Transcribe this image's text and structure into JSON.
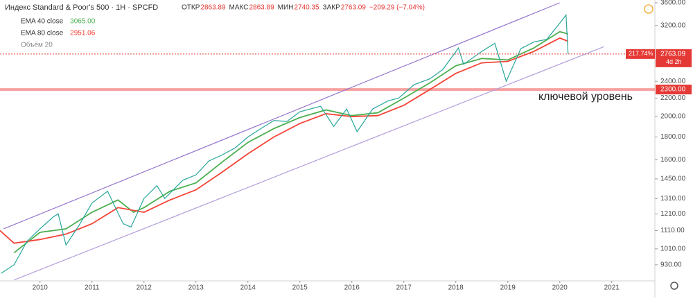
{
  "chart_data": {
    "type": "line",
    "title": "Индекс Standard & Poor's 500 · 1H · SPCFD",
    "ohlc": [
      {
        "label": "ОТКР",
        "value": 2863.89
      },
      {
        "label": "МАКС",
        "value": 2863.89
      },
      {
        "label": "МИН",
        "value": 2740.35
      },
      {
        "label": "ЗАКР",
        "value": 2763.09
      }
    ],
    "change": "−209.29 (−7.04%)",
    "volume_label": "Объём 20",
    "log_scale": true,
    "grid": false,
    "xlim": [
      2009.23,
      2021.83
    ],
    "xticks": [
      2010,
      2011,
      2012,
      2013,
      2014,
      2015,
      2016,
      2017,
      2018,
      2019,
      2020,
      2021
    ],
    "ylim": [
      856,
      3652
    ],
    "yticks": [
      {
        "value": 930,
        "label": "930.00"
      },
      {
        "value": 1010,
        "label": "1010.00"
      },
      {
        "value": 1110,
        "label": "1110.00"
      },
      {
        "value": 1210,
        "label": "1210.00"
      },
      {
        "value": 1310,
        "label": "1310.00"
      },
      {
        "value": 1450,
        "label": "1450.00"
      },
      {
        "value": 1600,
        "label": "1600.00"
      },
      {
        "value": 1800,
        "label": "1800.00"
      },
      {
        "value": 2000,
        "label": "2000.00"
      },
      {
        "value": 2200,
        "label": "2200.00"
      },
      {
        "value": 2400,
        "label": "2400.00"
      },
      {
        "value": 3200,
        "label": "3200.00"
      },
      {
        "value": 3600,
        "label": "3600.00"
      }
    ],
    "x": [
      2009.25,
      2009.5,
      2009.75,
      2010.0,
      2010.25,
      2010.35,
      2010.5,
      2010.75,
      2011.0,
      2011.3,
      2011.6,
      2011.75,
      2012.0,
      2012.25,
      2012.4,
      2012.75,
      2013.0,
      2013.25,
      2013.5,
      2013.75,
      2014.0,
      2014.25,
      2014.5,
      2014.75,
      2015.0,
      2015.4,
      2015.65,
      2015.9,
      2016.1,
      2016.4,
      2016.7,
      2016.9,
      2017.2,
      2017.5,
      2017.75,
      2018.05,
      2018.15,
      2018.5,
      2018.75,
      2018.97,
      2019.25,
      2019.5,
      2019.75,
      2020.0,
      2020.12,
      2020.16
    ],
    "series": [
      {
        "name": "SPCFD",
        "color": "#26a69a",
        "values": [
          890,
          930,
          1050,
          1120,
          1190,
          1210,
          1030,
          1140,
          1280,
          1360,
          1150,
          1130,
          1310,
          1400,
          1310,
          1440,
          1480,
          1590,
          1640,
          1700,
          1800,
          1880,
          1960,
          1950,
          2050,
          2110,
          1900,
          2080,
          1850,
          2080,
          2170,
          2200,
          2360,
          2430,
          2550,
          2850,
          2620,
          2800,
          2920,
          2400,
          2840,
          2940,
          2980,
          3240,
          3380,
          2763.09
        ]
      }
    ],
    "ema": [
      {
        "name": "EMA 40 close",
        "last_label": "3065.00",
        "color": "#4caf50",
        "x": [
          2009.5,
          2010.0,
          2010.5,
          2011.0,
          2011.5,
          2011.8,
          2012.0,
          2012.5,
          2013.0,
          2013.5,
          2014.0,
          2014.5,
          2015.0,
          2015.5,
          2016.0,
          2016.5,
          2017.0,
          2017.5,
          2018.0,
          2018.5,
          2019.0,
          2019.5,
          2020.0,
          2020.16
        ],
        "values": [
          990,
          1100,
          1120,
          1220,
          1300,
          1220,
          1250,
          1360,
          1420,
          1580,
          1750,
          1880,
          1990,
          2070,
          2010,
          2040,
          2200,
          2380,
          2600,
          2700,
          2680,
          2850,
          3100,
          3065
        ]
      },
      {
        "name": "EMA 80 close",
        "last_label": "2951.06",
        "color": "#f44336",
        "x": [
          2009.23,
          2009.5,
          2010.0,
          2010.5,
          2011.0,
          2011.5,
          2012.0,
          2012.5,
          2013.0,
          2013.5,
          2014.0,
          2014.5,
          2015.0,
          2015.5,
          2016.0,
          2016.5,
          2017.0,
          2017.5,
          2018.0,
          2018.5,
          2019.0,
          2019.5,
          2020.0,
          2020.16
        ],
        "values": [
          1110,
          1040,
          1060,
          1090,
          1150,
          1250,
          1220,
          1300,
          1370,
          1500,
          1650,
          1800,
          1930,
          2030,
          2000,
          2010,
          2120,
          2300,
          2500,
          2640,
          2660,
          2800,
          3000,
          2951.06
        ]
      }
    ],
    "channel": [
      {
        "color": "#9575cd",
        "x": [
          2009.3,
          2020.0
        ],
        "values": [
          1120,
          3600
        ]
      },
      {
        "color": "#b39ddb",
        "x": [
          2009.5,
          2020.85
        ],
        "values": [
          860,
          2870
        ]
      }
    ],
    "level": {
      "value": 2300,
      "label": "2300.00",
      "color": "#f7a1a1"
    },
    "level_annotation": "ключевой уровень",
    "last_price": 2763.09,
    "last_change": "217.74%",
    "countdown": "4d 2h"
  }
}
